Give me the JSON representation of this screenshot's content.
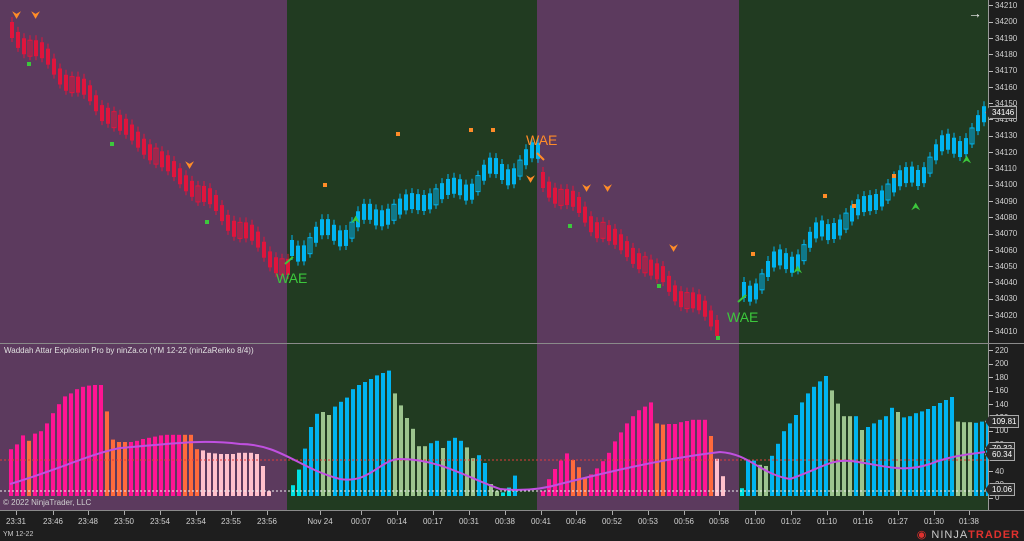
{
  "colors": {
    "bear_bg": "#5c3a5e",
    "bull_bg": "#213b21",
    "bear_candle": "#e0143c",
    "bull_candle": "#00b4f0",
    "hist_bull_strong": "#00b4f0",
    "hist_bull_weak": "#9cc48e",
    "hist_bull_start": "#00e0e0",
    "hist_bear_strong": "#ff1493",
    "hist_bear_weak": "#ff6a3c",
    "hist_bear_fade": "#ffc0cb",
    "signal_line_up": "#c050e0",
    "signal_line_down": "#a8a8a8",
    "deadzone": "#e03c3c",
    "buy_marker": "#3cc83c",
    "sell_marker": "#ff8c28"
  },
  "price_axis": {
    "ticks": [
      "34210",
      "34200",
      "34190",
      "34180",
      "34170",
      "34160",
      "34150",
      "34140",
      "34130",
      "34120",
      "34110",
      "34100",
      "34090",
      "34080",
      "34070",
      "34060",
      "34050",
      "34040",
      "34030",
      "34020",
      "34010"
    ],
    "current_price": "34146"
  },
  "indicator": {
    "title": "Waddah Attar Explosion Pro by ninZa.co (YM 12-22 (ninZaRenko 8/4))",
    "axis_ticks": [
      "220",
      "200",
      "180",
      "160",
      "140",
      "120",
      "100",
      "80",
      "60",
      "40",
      "20",
      "0"
    ],
    "tags": [
      "109.81",
      "70.32",
      "60.34",
      "10.06"
    ]
  },
  "time_axis": {
    "labels": [
      "23:31",
      "23:46",
      "23:48",
      "23:50",
      "23:54",
      "23:54",
      "23:55",
      "23:56",
      "Nov 24",
      "00:07",
      "00:14",
      "00:17",
      "00:31",
      "00:38",
      "00:41",
      "00:46",
      "00:52",
      "00:53",
      "00:56",
      "00:58",
      "01:00",
      "01:02",
      "01:10",
      "01:16",
      "01:27",
      "01:30",
      "01:38"
    ]
  },
  "signals": {
    "wae_1": "WAE",
    "wae_2": "WAE",
    "wae_3": "WAE"
  },
  "footer": {
    "copyright": "© 2022 NinjaTrader, LLC",
    "instrument": "YM 12-22",
    "brand_a": "NINJA",
    "brand_b": "TRADER"
  },
  "nav": {
    "arrow": "→"
  }
}
